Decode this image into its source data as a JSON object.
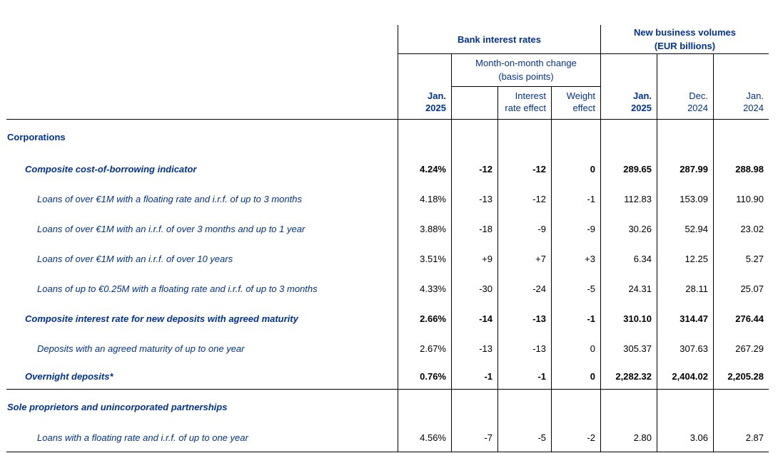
{
  "colors": {
    "brand_blue": "#003299",
    "text": "#000000",
    "border": "#000000"
  },
  "header": {
    "bank_rates_group": "Bank interest rates",
    "volumes_group_line1": "New business volumes",
    "volumes_group_line2": "(EUR billions)",
    "mom_group_line1": "Month-on-month change",
    "mom_group_line2": "(basis points)",
    "cols": {
      "rates_jan_2025": {
        "l1": "Jan.",
        "l2": "2025"
      },
      "interest_rate_effect": {
        "l1": "Interest",
        "l2": "rate effect"
      },
      "weight_effect": {
        "l1": "Weight",
        "l2": "effect"
      },
      "vol_jan_2025": {
        "l1": "Jan.",
        "l2": "2025"
      },
      "vol_dec_2024": {
        "l1": "Dec.",
        "l2": "2024"
      },
      "vol_jan_2024": {
        "l1": "Jan.",
        "l2": "2024"
      }
    }
  },
  "rows": [
    {
      "type": "section",
      "label": "Corporations"
    },
    {
      "type": "data",
      "bold": true,
      "label": "Composite cost-of-borrowing indicator",
      "values": [
        "4.24%",
        "-12",
        "-12",
        "0",
        "289.65",
        "287.99",
        "288.98"
      ]
    },
    {
      "type": "data",
      "bold": false,
      "label": "Loans of over €1M with a floating rate and i.r.f. of up to 3 months",
      "values": [
        "4.18%",
        "-13",
        "-12",
        "-1",
        "112.83",
        "153.09",
        "110.90"
      ]
    },
    {
      "type": "data",
      "bold": false,
      "label": "Loans of over €1M with an i.r.f. of over 3 months and up to 1 year",
      "values": [
        "3.88%",
        "-18",
        "-9",
        "-9",
        "30.26",
        "52.94",
        "23.02"
      ]
    },
    {
      "type": "data",
      "bold": false,
      "label": "Loans of over €1M with an i.r.f. of over 10 years",
      "values": [
        "3.51%",
        "+9",
        "+7",
        "+3",
        "6.34",
        "12.25",
        "5.27"
      ]
    },
    {
      "type": "data",
      "bold": false,
      "label": "Loans of up to €0.25M with a floating rate and i.r.f. of up to 3 months",
      "values": [
        "4.33%",
        "-30",
        "-24",
        "-5",
        "24.31",
        "28.11",
        "25.07"
      ]
    },
    {
      "type": "data",
      "bold": true,
      "label": "Composite interest rate for new deposits with agreed maturity",
      "values": [
        "2.66%",
        "-14",
        "-13",
        "-1",
        "310.10",
        "314.47",
        "276.44"
      ]
    },
    {
      "type": "data",
      "bold": false,
      "label": "Deposits with an agreed maturity of up to one year",
      "values": [
        "2.67%",
        "-13",
        "-13",
        "0",
        "305.37",
        "307.63",
        "267.29"
      ]
    },
    {
      "type": "data",
      "bold": true,
      "label": "Overnight deposits*",
      "values": [
        "0.76%",
        "-1",
        "-1",
        "0",
        "2,282.32",
        "2,404.02",
        "2,205.28"
      ]
    },
    {
      "type": "section",
      "label": "Sole proprietors and unincorporated partnerships"
    },
    {
      "type": "data",
      "bold": false,
      "label": "Loans with a floating rate and i.r.f. of up to one year",
      "values": [
        "4.56%",
        "-7",
        "-5",
        "-2",
        "2.80",
        "3.06",
        "2.87"
      ]
    }
  ]
}
